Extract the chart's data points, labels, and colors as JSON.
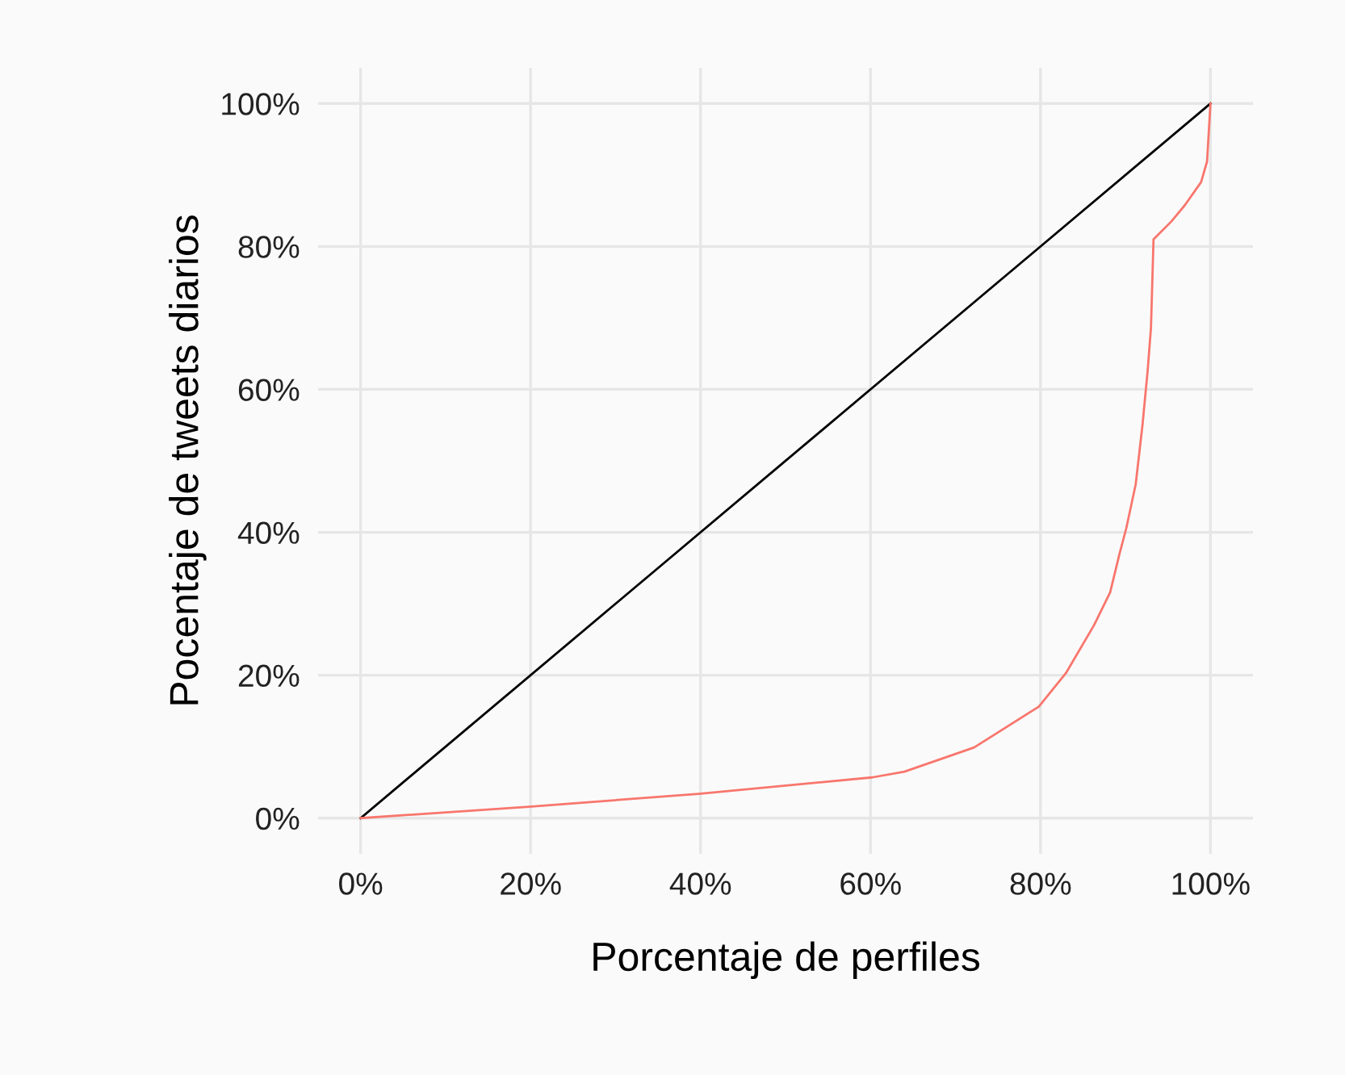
{
  "chart_data": {
    "type": "line",
    "xlabel": "Porcentaje de perfiles",
    "ylabel": "Pocentaje de tweets diarios",
    "xlim": [
      -5,
      105
    ],
    "ylim": [
      -5,
      105
    ],
    "xticks": [
      {
        "value": 0,
        "label": "0%"
      },
      {
        "value": 20,
        "label": "20%"
      },
      {
        "value": 40,
        "label": "40%"
      },
      {
        "value": 60,
        "label": "60%"
      },
      {
        "value": 80,
        "label": "80%"
      },
      {
        "value": 100,
        "label": "100%"
      }
    ],
    "yticks": [
      {
        "value": 0,
        "label": "0%"
      },
      {
        "value": 20,
        "label": "20%"
      },
      {
        "value": 40,
        "label": "40%"
      },
      {
        "value": 60,
        "label": "60%"
      },
      {
        "value": 80,
        "label": "80%"
      },
      {
        "value": 100,
        "label": "100%"
      }
    ],
    "grid": true,
    "series": [
      {
        "color": "#000000",
        "x": [
          0,
          100
        ],
        "values": [
          0,
          100
        ]
      },
      {
        "color": "#f8766d",
        "x": [
          0,
          19.8,
          39.8,
          60.2,
          64,
          72.2,
          79.8,
          83,
          86.3,
          88.2,
          89.3,
          90.1,
          91.2,
          92,
          92.6,
          93,
          93.3,
          95.4,
          97,
          98.9,
          99.6,
          100
        ],
        "values": [
          0,
          1.6,
          3.4,
          5.7,
          6.5,
          9.9,
          15.6,
          20.3,
          27,
          31.6,
          37,
          40.6,
          46.7,
          55,
          62.5,
          68.6,
          81,
          83.5,
          85.8,
          89,
          91.9,
          100
        ]
      }
    ]
  }
}
